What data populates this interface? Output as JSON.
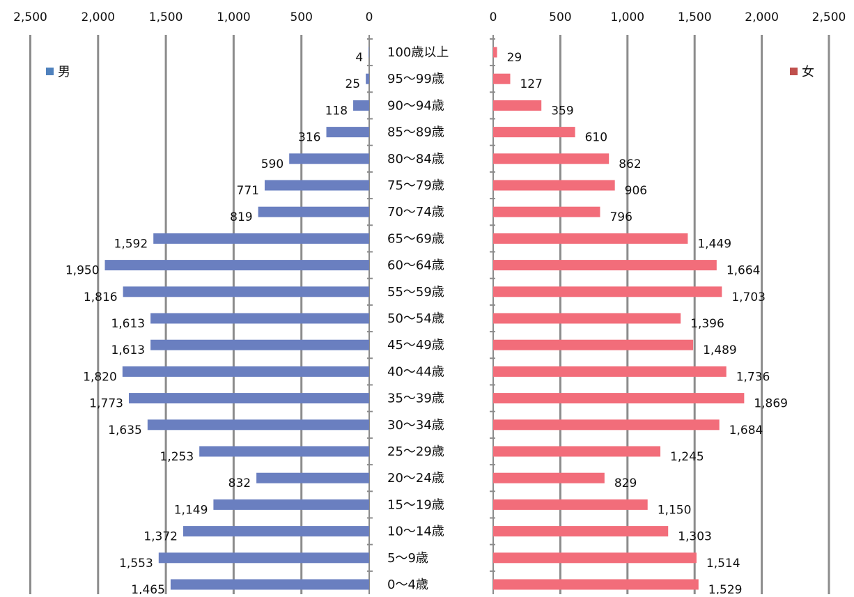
{
  "chart_data": {
    "type": "bar",
    "orientation": "horizontal",
    "subtype": "population-pyramid",
    "categories": [
      "100歳以上",
      "95〜99歳",
      "90〜94歳",
      "85〜89歳",
      "80〜84歳",
      "75〜79歳",
      "70〜74歳",
      "65〜69歳",
      "60〜64歳",
      "55〜59歳",
      "50〜54歳",
      "45〜49歳",
      "40〜44歳",
      "35〜39歳",
      "30〜34歳",
      "25〜29歳",
      "20〜24歳",
      "15〜19歳",
      "10〜14歳",
      "5〜9歳",
      "0〜4歳"
    ],
    "series": [
      {
        "name": "男",
        "side": "left",
        "color": "#6a7fc0",
        "legend_color": "#4f81bd",
        "values": [
          4,
          25,
          118,
          316,
          590,
          771,
          819,
          1592,
          1950,
          1816,
          1613,
          1613,
          1820,
          1773,
          1635,
          1253,
          832,
          1149,
          1372,
          1553,
          1465
        ],
        "labels": [
          "4",
          "25",
          "118",
          "316",
          "590",
          "771",
          "819",
          "1,592",
          "1,950",
          "1,816",
          "1,613",
          "1,613",
          "1,820",
          "1,773",
          "1,635",
          "1,253",
          "832",
          "1,149",
          "1,372",
          "1,553",
          "1,465"
        ]
      },
      {
        "name": "女",
        "side": "right",
        "color": "#f26d7a",
        "legend_color": "#c0504d",
        "values": [
          29,
          127,
          359,
          610,
          862,
          906,
          796,
          1449,
          1664,
          1703,
          1396,
          1489,
          1736,
          1869,
          1684,
          1245,
          829,
          1150,
          1303,
          1514,
          1529
        ],
        "labels": [
          "29",
          "127",
          "359",
          "610",
          "862",
          "906",
          "796",
          "1,449",
          "1,664",
          "1,703",
          "1,396",
          "1,489",
          "1,736",
          "1,869",
          "1,684",
          "1,245",
          "829",
          "1,150",
          "1,303",
          "1,514",
          "1,529"
        ]
      }
    ],
    "xlim": [
      0,
      2500
    ],
    "xticks": [
      0,
      500,
      1000,
      1500,
      2000,
      2500
    ],
    "xtick_labels": [
      "0",
      "500",
      "1,000",
      "1,500",
      "2,000",
      "2,500"
    ],
    "gridlines": "vertical",
    "legend": [
      "top-left",
      "top-right"
    ],
    "title": "",
    "xlabel": "",
    "ylabel": ""
  }
}
